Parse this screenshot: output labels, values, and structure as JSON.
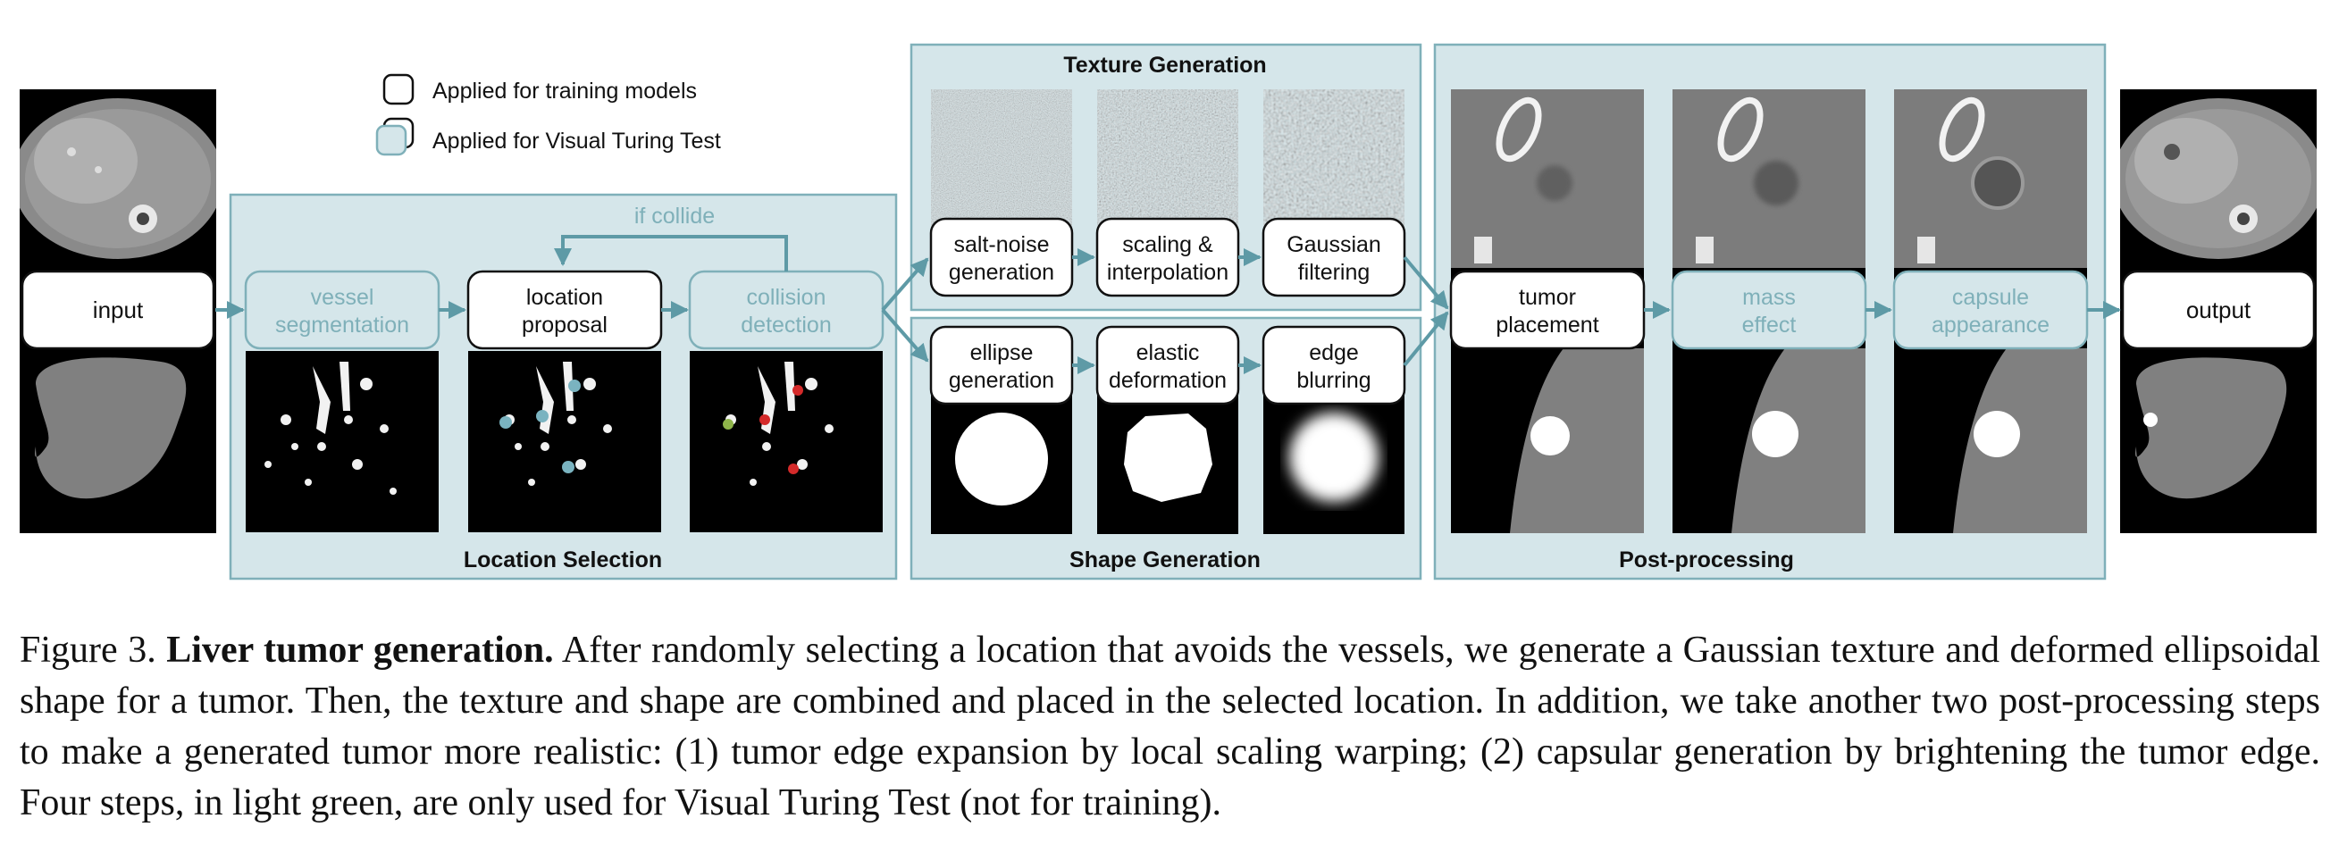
{
  "legend": {
    "training": "Applied for training models",
    "turing": "Applied for Visual Turing Test"
  },
  "colors": {
    "panel_fill": "#d5e6ea",
    "panel_stroke": "#7fb0b9",
    "turing_text": "#7fb0b9",
    "arrow": "#5e9aa6",
    "box_stroke": "#111111"
  },
  "nodes": {
    "input": "input",
    "output": "output",
    "vessel": [
      "vessel",
      "segmentation"
    ],
    "location": [
      "location",
      "proposal"
    ],
    "collision": [
      "collision",
      "detection"
    ],
    "salt": [
      "salt-noise",
      "generation"
    ],
    "scaling": [
      "scaling &",
      "interpolation"
    ],
    "gaussian": [
      "Gaussian",
      "filtering"
    ],
    "ellipse": [
      "ellipse",
      "generation"
    ],
    "elastic": [
      "elastic",
      "deformation"
    ],
    "edge": [
      "edge",
      "blurring"
    ],
    "tumor": [
      "tumor",
      "placement"
    ],
    "mass": [
      "mass",
      "effect"
    ],
    "capsule": [
      "capsule",
      "appearance"
    ]
  },
  "if_collide": "if collide",
  "panels": {
    "location": "Location Selection",
    "texture": "Texture Generation",
    "shape": "Shape Generation",
    "post": "Post-processing"
  },
  "caption": {
    "prefix": "Figure 3.",
    "title": "Liver tumor generation.",
    "body": "After randomly selecting a location that avoids the vessels, we generate a Gaussian texture and deformed ellipsoidal shape for a tumor. Then, the texture and shape are combined and placed in the selected location. In addition, we take another two post-processing steps to make a generated tumor more realistic: (1) tumor edge expansion by local scaling warping; (2) capsular generation by brightening the tumor edge. Four steps, in light green, are only used for Visual Turing Test (not for training)."
  }
}
